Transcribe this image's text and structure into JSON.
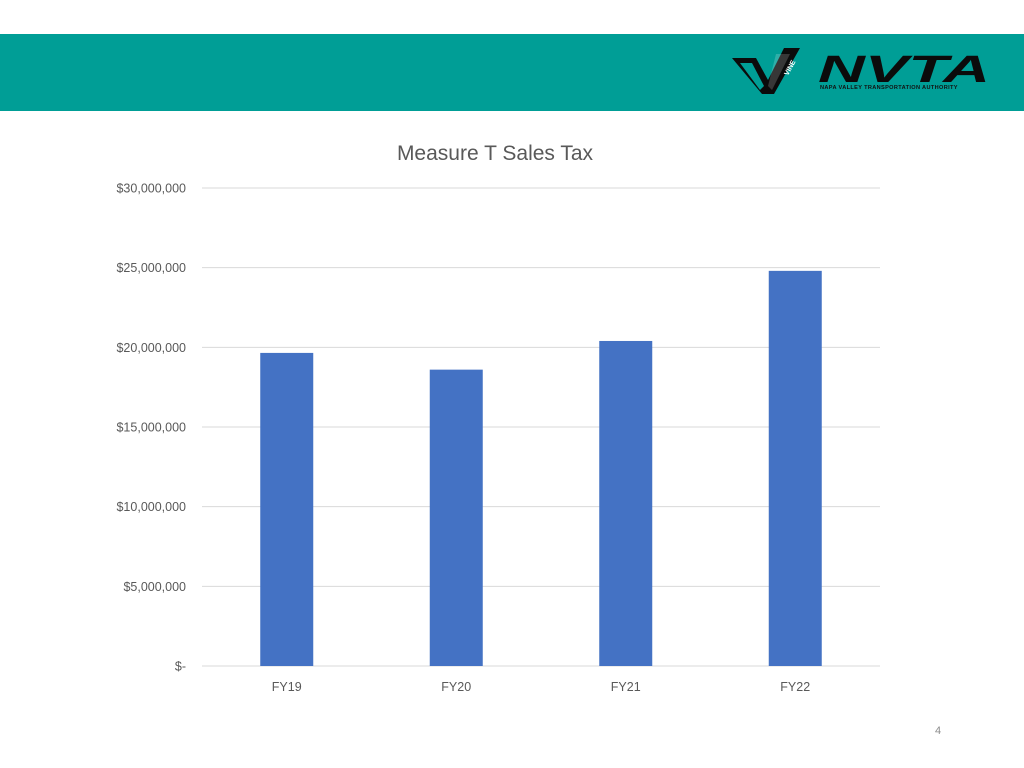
{
  "header": {
    "band_color": "#009e96",
    "vine_logo": {
      "icon": "vine-v-logo-icon",
      "text": "VINE"
    },
    "nvta_logo": {
      "icon": "nvta-wordmark-icon",
      "text": "NVTA"
    },
    "nvta_subtitle": "NAPA VALLEY TRANSPORTATION AUTHORITY"
  },
  "slide": {
    "page_number": "4"
  },
  "chart_data": {
    "type": "bar",
    "title": "Measure T Sales Tax",
    "xlabel": "",
    "ylabel": "",
    "categories": [
      "FY19",
      "FY20",
      "FY21",
      "FY22"
    ],
    "values": [
      19650000,
      18600000,
      20400000,
      24800000
    ],
    "ylim": [
      0,
      30000000
    ],
    "y_ticks": [
      0,
      5000000,
      10000000,
      15000000,
      20000000,
      25000000,
      30000000
    ],
    "y_tick_labels": [
      "$-",
      "$5,000,000",
      "$10,000,000",
      "$15,000,000",
      "$20,000,000",
      "$25,000,000",
      "$30,000,000"
    ],
    "grid": true,
    "legend": "none",
    "bar_color": "#4472c4",
    "gridline_color": "#d9d9d9"
  }
}
